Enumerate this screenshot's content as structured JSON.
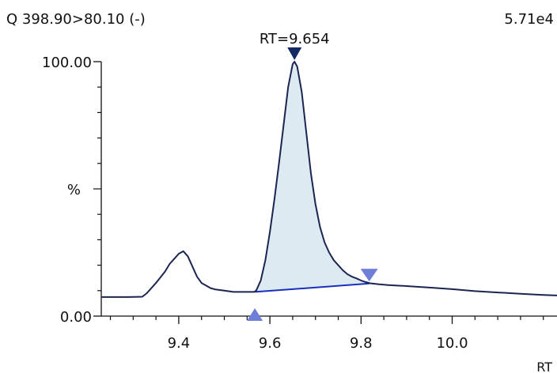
{
  "header": {
    "trace_label": "Q 398.90>80.10 (-)",
    "max_intensity": "5.71e4"
  },
  "chart_data": {
    "type": "line",
    "title": "Q 398.90>80.10 (-)",
    "max_intensity_label": "5.71e4",
    "xlabel": "RT",
    "ylabel": "%",
    "xlim": [
      9.23,
      10.23
    ],
    "ylim": [
      0,
      100
    ],
    "x_ticks": [
      9.4,
      9.6,
      9.8,
      10.0
    ],
    "x_tick_labels": [
      "9.4",
      "9.6",
      "9.8",
      "10.0"
    ],
    "y_ticks": [
      0,
      100
    ],
    "y_tick_labels": [
      "0.00",
      "100.00"
    ],
    "grid": false,
    "peak": {
      "label": "RT=9.654",
      "apex_rt": 9.654,
      "apex_value": 100,
      "start_rt": 9.567,
      "end_rt": 9.818,
      "baseline_start_value": 9.5,
      "baseline_end_value": 12.8,
      "fill_color": "#dcebf2",
      "marker_color": "#132a63",
      "integration_marker_color": "#6f7fd8",
      "baseline_color": "#1a2fbf"
    },
    "series": [
      {
        "color": "#1c2552",
        "x": [
          9.23,
          9.29,
          9.32,
          9.33,
          9.35,
          9.37,
          9.38,
          9.39,
          9.4,
          9.41,
          9.42,
          9.43,
          9.44,
          9.45,
          9.46,
          9.47,
          9.48,
          9.5,
          9.52,
          9.54,
          9.56,
          9.565,
          9.57,
          9.58,
          9.59,
          9.6,
          9.61,
          9.62,
          9.63,
          9.64,
          9.65,
          9.654,
          9.66,
          9.67,
          9.68,
          9.69,
          9.7,
          9.71,
          9.72,
          9.73,
          9.74,
          9.75,
          9.76,
          9.77,
          9.78,
          9.79,
          9.8,
          9.81,
          9.82,
          9.84,
          9.86,
          9.9,
          9.95,
          10.0,
          10.05,
          10.1,
          10.15,
          10.2,
          10.23
        ],
        "values": [
          7.5,
          7.5,
          7.6,
          9.0,
          13.0,
          17.5,
          20.5,
          22.5,
          24.5,
          25.5,
          23.5,
          19.5,
          15.5,
          13.0,
          12.0,
          11.0,
          10.5,
          10.0,
          9.5,
          9.5,
          9.5,
          9.5,
          10.0,
          14.0,
          22.0,
          33.0,
          46.0,
          60.0,
          75.0,
          90.0,
          99.0,
          100.0,
          98.0,
          88.0,
          72.0,
          56.0,
          44.0,
          35.0,
          29.0,
          25.0,
          22.0,
          20.0,
          18.0,
          16.5,
          15.5,
          14.8,
          14.0,
          13.4,
          12.9,
          12.5,
          12.2,
          11.8,
          11.2,
          10.6,
          9.8,
          9.3,
          8.8,
          8.3,
          8.1
        ]
      }
    ]
  }
}
